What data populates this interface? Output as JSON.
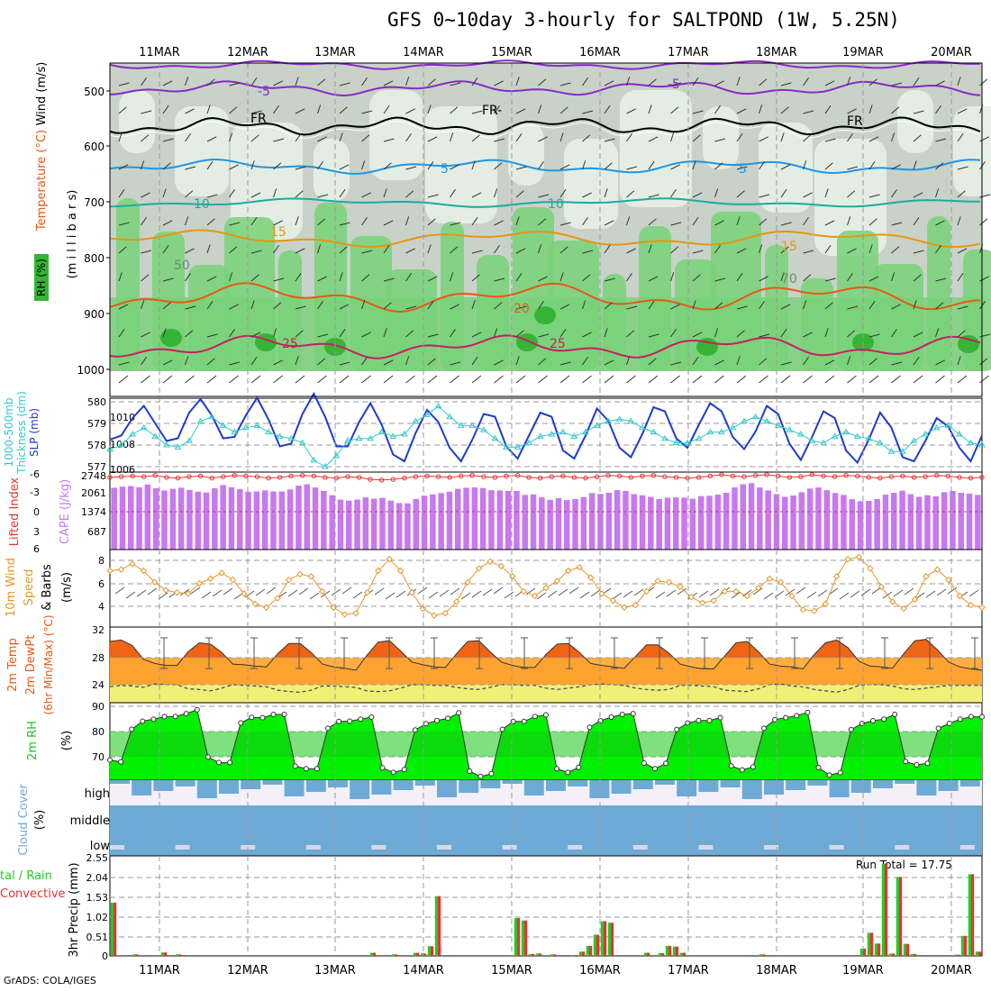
{
  "title": "GFS 0~10day 3-hourly for SALTPOND (1W, 5.25N)",
  "footer": "GrADS: COLA/IGES",
  "colors": {
    "rh_dark": "#36b436",
    "rh_light": "#78d278",
    "rh_grey": "#c8d2c8",
    "rh_pale": "#e6f0e6",
    "temp_purple": "#8c28c8",
    "temp_black": "#000000",
    "temp_blue": "#1e96e6",
    "temp_cyan": "#1eaaa0",
    "temp_orange": "#e69614",
    "temp_dorange": "#e65a14",
    "temp_red": "#c81e64",
    "slp": "#1e3cc8",
    "thick": "#32c8c8",
    "li": "#e63232",
    "cape": "#c878f0",
    "wind10": "#e69628",
    "temp_hot": "#f06414",
    "temp_warm": "#ffa832",
    "dewpt_fill": "#f0f078",
    "rh_green": "#14c814",
    "rh_bright": "#00f000",
    "cloud": "#6eaad6",
    "precip_green": "#28c828",
    "precip_red": "#e63232"
  },
  "date_labels": [
    "11MAR",
    "12MAR",
    "13MAR",
    "14MAR",
    "15MAR",
    "16MAR",
    "17MAR",
    "18MAR",
    "19MAR",
    "20MAR"
  ],
  "panel_labels": {
    "upper_rh": "RH (%)",
    "upper_temp": "Temperature (°C)",
    "upper_wind": "Wind (m/s)",
    "upper_mb": "(m i l l i b a r s)",
    "thick": "Thickness (dm)",
    "thick2": "1000-500mb",
    "slp": "SLP (mb)",
    "li": "Lifted Index",
    "cape": "CAPE (J/kg)",
    "wind10": "10m Wind",
    "wind10b": "Speed",
    "wind10c": "& Barbs",
    "wind10d": "(m/s)",
    "temp2m": "2m Temp",
    "dew2m": "2m DewPt",
    "minmax": "(6hr Min/Max) (°C)",
    "rh2m": "2m RH",
    "rh2m_unit": "(%)",
    "cloud": "Cloud Cover",
    "cloud_unit": "(%)",
    "precip": "3hr Precip (mm)",
    "precip_legend1": "tal / Rain",
    "precip_legend2": "Convective",
    "run_total": "Run Total = 17.75"
  },
  "contour_labels": {
    "m5a": "-5",
    "m5b": "-5",
    "fra": "FR",
    "frb": "FR-",
    "frc": "FR",
    "p5a": "5",
    "p5b": "5",
    "p10a": "10",
    "p10b": "10",
    "p15a": "15",
    "p15b": "15",
    "p20": "20",
    "p25a": "25",
    "p25b": "25",
    "rh50": "50",
    "rh70": "70"
  },
  "upper_yticks": [
    "500",
    "600",
    "700",
    "800",
    "900",
    "1000"
  ],
  "thick_yticks": [
    "580",
    "579",
    "578",
    "577"
  ],
  "slp_yticks": [
    "1010",
    "1008",
    "1006"
  ],
  "li_yticks": [
    "-3",
    "0",
    "3",
    "6"
  ],
  "li_ytop": "-6",
  "cape_yticks": [
    "2748",
    "2061",
    "1374",
    "687"
  ],
  "wind_yticks": [
    "8",
    "6",
    "4"
  ],
  "temp_yticks": [
    "32",
    "28",
    "24"
  ],
  "rh_yticks": [
    "90",
    "80",
    "70"
  ],
  "cloud_yticks": [
    "high",
    "middle",
    "low"
  ],
  "precip_yticks": [
    "2.55",
    "2.04",
    "1.53",
    "1.02",
    "0.51",
    "0"
  ],
  "chart_data": {
    "type": "line",
    "x_labels": [
      "11MAR",
      "12MAR",
      "13MAR",
      "14MAR",
      "15MAR",
      "16MAR",
      "17MAR",
      "18MAR",
      "19MAR",
      "20MAR"
    ],
    "slp_mb": [
      1008.2,
      1008.5,
      1009.8,
      1010.7,
      1009.4,
      1008.1,
      1008.3,
      1010.2,
      1011.2,
      1010,
      1008.3,
      1008.4,
      1010,
      1011.3,
      1009.7,
      1007.7,
      1007.9,
      1010.1,
      1011.6,
      1009.9,
      1007.7,
      1007.7,
      1009.5,
      1010.9,
      1009.3,
      1007.1,
      1006.6,
      1008.7,
      1010.4,
      1009.5,
      1007.6,
      1006.6,
      1008.2,
      1010.1,
      1009.9,
      1007.7,
      1006.8,
      1008.5,
      1010.2,
      1009.9,
      1007.4,
      1006.8,
      1008.5,
      1010.5,
      1009.6,
      1007.6,
      1006.9,
      1008.6,
      1010.6,
      1010.3,
      1008.3,
      1007.6,
      1009.3,
      1010.9,
      1010.3,
      1008.4,
      1007.5,
      1008.8,
      1010.7,
      1010.1,
      1007.9,
      1006.7,
      1008.4,
      1010.3,
      1009.8,
      1007.4,
      1006.5,
      1008.2,
      1010.2,
      1009.1,
      1006.9,
      1006.6,
      1008.1,
      1009.8,
      1009.2,
      1007.6,
      1006.6,
      1008.5
    ],
    "thickness_dm": [
      577.8,
      578,
      578.5,
      578.8,
      578.4,
      578,
      577.9,
      578.2,
      579.1,
      579.3,
      578.9,
      578.6,
      578.8,
      578.9,
      578.6,
      578.4,
      578.3,
      578.1,
      577.3,
      577,
      577.5,
      578.2,
      578.3,
      578.3,
      578.6,
      578.4,
      578.5,
      579.1,
      579.4,
      579.8,
      579.3,
      578.9,
      578.9,
      578.7,
      578.3,
      577.9,
      577.9,
      578.1,
      578.4,
      578.5,
      578.6,
      578.4,
      578.6,
      578.9,
      579.1,
      579.2,
      579.1,
      578.8,
      578.6,
      578.3,
      578.1,
      578.1,
      578.3,
      578.6,
      578.6,
      578.8,
      579.1,
      579.3,
      579.1,
      578.9,
      578.7,
      578.5,
      578.2,
      578.1,
      578.4,
      578.6,
      578.4,
      578.3,
      578.1,
      577.7,
      577.7,
      578.2,
      578.5,
      578.8,
      578.9,
      578.5,
      578.1,
      578
    ],
    "lifted_index": [
      -5.2,
      -5.3,
      -5.4,
      -5.3,
      -5.5,
      -5.2,
      -5.1,
      -5.3,
      -5.4,
      -5.1,
      -5.3,
      -5.5,
      -5.4,
      -5.3,
      -5.1,
      -5.2,
      -5.4,
      -5.5,
      -5.4,
      -5.2,
      -5.1,
      -5.3,
      -5.2,
      -4.9,
      -4.8,
      -4.9,
      -5.1,
      -5.3,
      -5.4,
      -5.3,
      -5.2,
      -5.4,
      -5.5,
      -5.3,
      -5.2,
      -5.4,
      -5.5,
      -5.2,
      -5.1,
      -5.3,
      -5.4,
      -5.2,
      -5.1,
      -5.3,
      -5.5,
      -5.4,
      -5.2,
      -5.4,
      -5.5,
      -5.3,
      -5.2,
      -5.1,
      -5.2,
      -5.4,
      -5.6,
      -5.4,
      -5.3,
      -5.5,
      -5.6,
      -5.4,
      -5.2,
      -5.3,
      -5.6,
      -5.4,
      -5.3,
      -5.5,
      -5.4,
      -5.2,
      -5.1,
      -5.3,
      -5.4,
      -5.2,
      -5.3,
      -5.5,
      -5.4,
      -5.2,
      -5.1,
      -5.2
    ],
    "cape_jkg": [
      2300,
      2340,
      2360,
      2320,
      2420,
      2280,
      2200,
      2260,
      2300,
      2220,
      2150,
      2120,
      2280,
      2400,
      2320,
      2250,
      2150,
      2160,
      2200,
      2160,
      2160,
      2240,
      2380,
      2430,
      2310,
      2180,
      2020,
      1860,
      1820,
      1860,
      1940,
      1890,
      1920,
      1820,
      1730,
      1720,
      1880,
      2000,
      2050,
      2100,
      2150,
      2260,
      2300,
      2310,
      2290,
      2210,
      2200,
      2180,
      2180,
      2030,
      2050,
      1950,
      1850,
      1910,
      1840,
      1880,
      1950,
      2100,
      2070,
      2110,
      2210,
      2180,
      2060,
      2020,
      1960,
      1880,
      1930,
      1940,
      1930,
      1890,
      1990,
      2000,
      2040,
      2110,
      2310,
      2430,
      2470,
      2310,
      2200,
      2060,
      1960,
      2010,
      2130,
      2270,
      2310,
      2210,
      2100,
      2030,
      1870,
      1800,
      1810,
      1880,
      2040,
      2110,
      2190,
      2060,
      1960,
      2020,
      1980,
      2130,
      2180,
      2110,
      2080,
      2030
    ],
    "wind10m_ms": [
      7.1,
      7.2,
      7.7,
      7.1,
      6.1,
      5.4,
      5.2,
      5.1,
      6,
      6.4,
      6.9,
      6.3,
      5.1,
      4.2,
      3.9,
      4.7,
      6.3,
      6.8,
      6.6,
      5.3,
      3.9,
      3.3,
      3.4,
      5.2,
      7.1,
      8.1,
      7.1,
      5.2,
      3.8,
      3.2,
      3.4,
      4.4,
      6.1,
      7.3,
      7.9,
      7.5,
      6.6,
      5.3,
      4.9,
      5.6,
      6.2,
      7.1,
      7.4,
      6.5,
      5.1,
      4.5,
      3.9,
      4.1,
      5.3,
      6.2,
      6.1,
      5.7,
      4.8,
      4.3,
      4.5,
      5.3,
      5.3,
      4.9,
      5.6,
      6.4,
      6.1,
      4.9,
      3.7,
      3.6,
      4.2,
      6.6,
      8.1,
      8.3,
      7.3,
      5.7,
      4.4,
      3.8,
      4.6,
      6.6,
      7.2,
      6.3,
      4.9,
      4.1,
      3.9
    ],
    "temp2m_c": [
      30.3,
      30.5,
      29.7,
      27.7,
      27.1,
      26.8,
      26.8,
      28.8,
      30.1,
      29.9,
      28.7,
      27,
      26.9,
      26.7,
      26.6,
      28.5,
      30,
      30,
      28.7,
      27,
      26.6,
      26.4,
      26.1,
      28.3,
      30.2,
      30.4,
      28.9,
      27.3,
      26.9,
      26.6,
      26.5,
      28.5,
      30.3,
      30.4,
      28.8,
      27.3,
      26.8,
      26.5,
      26.5,
      28.4,
      29.9,
      30,
      28.7,
      27.1,
      26.8,
      26.6,
      26.4,
      28.1,
      29.8,
      29.8,
      28.6,
      27,
      26.6,
      26.3,
      26.3,
      28.2,
      30.1,
      30.3,
      28.8,
      27,
      26.7,
      26.6,
      26.3,
      28.4,
      30.1,
      30.5,
      29.4,
      27.4,
      26.7,
      26.6,
      26.4,
      28.5,
      30.4,
      30.6,
      29.1,
      27.3,
      26.6,
      26.3,
      26.1
    ],
    "dewpt2m_c": [
      23.7,
      23.9,
      23.8,
      23.6,
      24.1,
      24,
      24,
      23.4,
      23.3,
      23.1,
      23.5,
      24,
      23.9,
      23.8,
      23.7,
      23.2,
      23,
      22.9,
      23.2,
      23.8,
      23.8,
      23.7,
      23.6,
      23.1,
      23,
      23.1,
      23.5,
      24,
      24,
      23.9,
      23.9,
      23.6,
      23.4,
      23.3,
      23.6,
      24,
      24,
      23.9,
      23.9,
      23.5,
      23.3,
      23.5,
      23.7,
      24,
      24.1,
      24,
      23.9,
      23.5,
      23.3,
      23.2,
      23.3,
      23.9,
      23.9,
      23.8,
      23.7,
      23.2,
      23.1,
      23,
      23.4,
      24,
      24.1,
      23.8,
      23.7,
      23.3,
      23.1,
      22.9,
      23.3,
      23.9,
      24,
      24,
      23.8,
      23.4,
      23.3,
      23.5,
      23.7,
      23.9,
      23.9,
      23.9,
      23.9
    ],
    "rh2m_pct": [
      68.7,
      68,
      80.9,
      84.1,
      84.9,
      85.9,
      86,
      87.1,
      88.6,
      69.9,
      67.7,
      67.7,
      83.4,
      85.6,
      85.5,
      86.8,
      86.8,
      66.3,
      65.3,
      65.3,
      81.3,
      84,
      84.1,
      84.9,
      85.7,
      65.6,
      63.8,
      64.9,
      80.6,
      83.1,
      84.4,
      85.2,
      87.4,
      64.3,
      62.2,
      63.3,
      80.9,
      84,
      84,
      86,
      86.6,
      65.3,
      63.8,
      65.8,
      81.7,
      84.3,
      85.7,
      86.8,
      87.1,
      67.5,
      65.3,
      67.4,
      80.8,
      83.4,
      84.4,
      84.4,
      85.5,
      66.4,
      64.8,
      66,
      81.3,
      84.7,
      85.5,
      86.3,
      87.6,
      65.7,
      62.8,
      63.7,
      80.8,
      83.2,
      84.3,
      84.9,
      86.8,
      68.1,
      66.8,
      67.4,
      81.3,
      83.2,
      84.9,
      85.9,
      85.8
    ],
    "precip_mm": [
      1.38,
      0,
      0,
      0.04,
      0,
      0,
      0,
      0.09,
      0,
      0.04,
      0,
      0,
      0,
      0,
      0,
      0,
      0,
      0,
      0,
      0,
      0,
      0,
      0,
      0,
      0,
      0,
      0,
      0,
      0,
      0,
      0,
      0,
      0,
      0,
      0,
      0,
      0.08,
      0,
      0,
      0.04,
      0,
      0,
      0.08,
      0.06,
      0.25,
      1.55,
      0,
      0,
      0,
      0,
      0,
      0,
      0,
      0,
      0,
      0,
      0.98,
      0.92,
      0.05,
      0.06,
      0,
      0.04,
      0,
      0,
      0.02,
      0.11,
      0.26,
      0.55,
      0.9,
      0.86,
      0,
      0,
      0,
      0,
      0.08,
      0,
      0.07,
      0.26,
      0.24,
      0.08,
      0,
      0,
      0,
      0,
      0,
      0,
      0,
      0,
      0,
      0,
      0.04,
      0,
      0,
      0,
      0,
      0,
      0,
      0,
      0,
      0,
      0,
      0,
      0,
      0,
      0.19,
      0.6,
      0.32,
      2.39,
      0.06,
      2.05,
      0.31,
      0.05,
      0,
      0,
      0,
      0,
      0,
      0.03,
      0.52,
      2.12,
      0.11
    ],
    "run_total_mm": 17.75
  }
}
